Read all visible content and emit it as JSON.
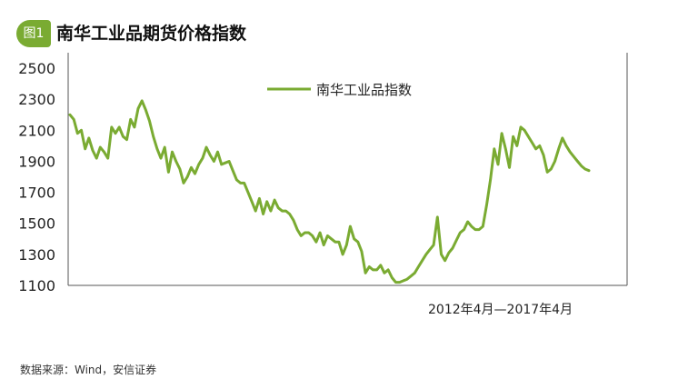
{
  "figure": {
    "badge": "图1",
    "title": "南华工业品期货价格指数"
  },
  "source_note": "数据来源：Wind，安信证券",
  "chart_data": {
    "type": "line",
    "title": "南华工业品期货价格指数",
    "xlabel": "2012年4月—2017年4月",
    "ylabel": "",
    "ylim": [
      1100,
      2600
    ],
    "yticks": [
      1100,
      1300,
      1500,
      1700,
      1900,
      2100,
      2300,
      2500
    ],
    "grid": false,
    "legend": "top-center",
    "series": [
      {
        "name": "南华工业品指数",
        "color": "#7aab32",
        "x": [
          0,
          1,
          2,
          3,
          4,
          5,
          6,
          7,
          8,
          9,
          10,
          11,
          12,
          13,
          14,
          15,
          16,
          17,
          18,
          19,
          20,
          21,
          22,
          23,
          24,
          25,
          26,
          27,
          28,
          29,
          30,
          31,
          32,
          33,
          34,
          35,
          36,
          37,
          38,
          39,
          40,
          41,
          42,
          43,
          44,
          45,
          46,
          47,
          48,
          49,
          50,
          51,
          52,
          53,
          54,
          55,
          56,
          57,
          58,
          59,
          60,
          61,
          62,
          63,
          64,
          65,
          66,
          67,
          68,
          69,
          70,
          71,
          72,
          73,
          74,
          75,
          76,
          77,
          78,
          79,
          80,
          81,
          82,
          83,
          84,
          85,
          86,
          87,
          88,
          89,
          90,
          91,
          92,
          93,
          94,
          95,
          96,
          97,
          98,
          99,
          100,
          101,
          102,
          103,
          104,
          105,
          106,
          107,
          108,
          109,
          110,
          111,
          112,
          113,
          114,
          115,
          116,
          117,
          118,
          119,
          120,
          121,
          122,
          123,
          124,
          125,
          126,
          127,
          128,
          129,
          130,
          131,
          132,
          133,
          134,
          135,
          136,
          137
        ],
        "values": [
          2200,
          2170,
          2080,
          2100,
          1980,
          2050,
          1970,
          1920,
          1990,
          1960,
          1920,
          2120,
          2080,
          2120,
          2060,
          2040,
          2170,
          2120,
          2240,
          2290,
          2230,
          2160,
          2060,
          1980,
          1920,
          1990,
          1830,
          1960,
          1900,
          1850,
          1760,
          1800,
          1860,
          1820,
          1880,
          1920,
          1990,
          1940,
          1900,
          1960,
          1880,
          1890,
          1900,
          1840,
          1780,
          1760,
          1760,
          1700,
          1640,
          1580,
          1660,
          1560,
          1640,
          1580,
          1650,
          1600,
          1580,
          1580,
          1560,
          1520,
          1460,
          1420,
          1440,
          1440,
          1420,
          1380,
          1440,
          1360,
          1420,
          1400,
          1380,
          1380,
          1300,
          1360,
          1480,
          1400,
          1380,
          1320,
          1180,
          1220,
          1200,
          1200,
          1230,
          1180,
          1200,
          1150,
          1120,
          1120,
          1130,
          1140,
          1160,
          1180,
          1220,
          1260,
          1300,
          1330,
          1360,
          1540,
          1300,
          1260,
          1310,
          1340,
          1390,
          1440,
          1460,
          1510,
          1480,
          1460,
          1460,
          1480,
          1620,
          1780,
          1980,
          1880,
          2080,
          1980,
          1860,
          2060,
          2000,
          2120,
          2100,
          2060,
          2020,
          1980,
          2000,
          1940,
          1830,
          1850,
          1900,
          1980,
          2050,
          2000,
          1960,
          1930,
          1900,
          1870,
          1850,
          1840
        ]
      }
    ]
  }
}
